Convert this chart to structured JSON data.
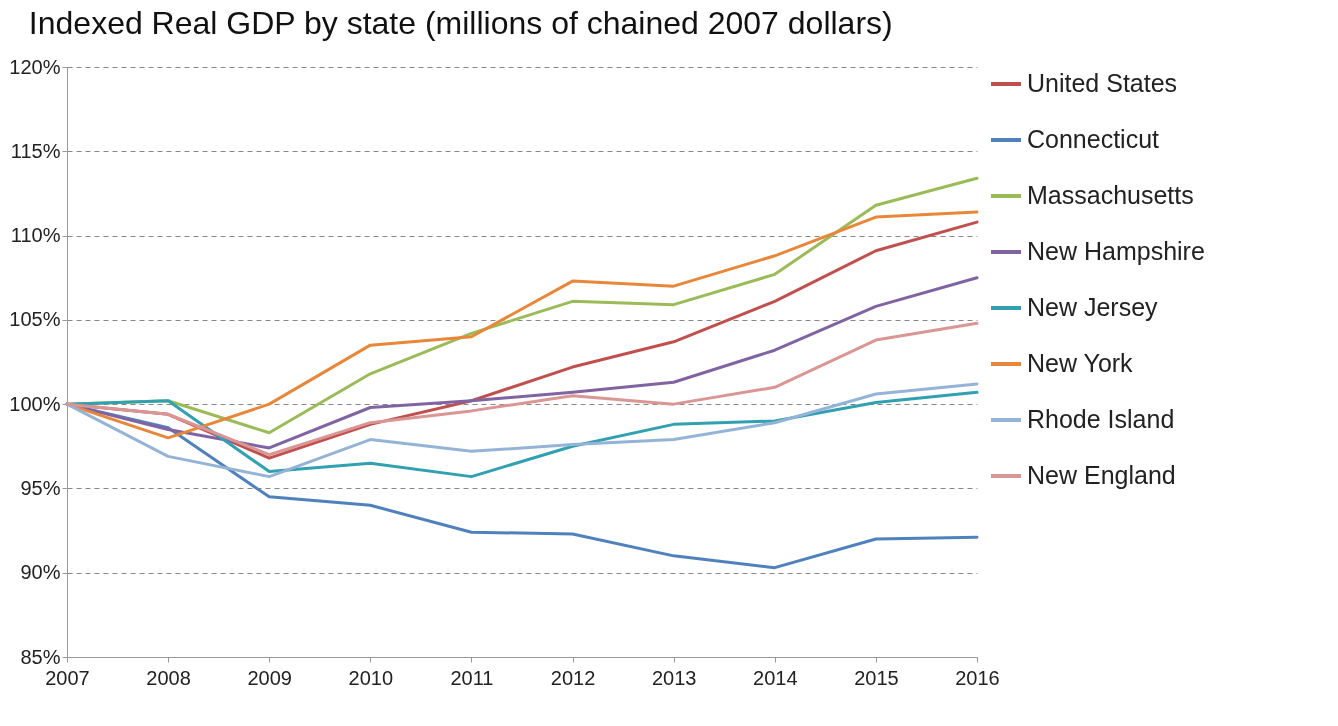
{
  "chart_data": {
    "type": "line",
    "title": "Indexed Real GDP by state (millions of chained 2007 dollars)",
    "categories": [
      "2007",
      "2008",
      "2009",
      "2010",
      "2011",
      "2012",
      "2013",
      "2014",
      "2015",
      "2016"
    ],
    "series": [
      {
        "name": "United States",
        "color": "#c0504d",
        "values": [
          100,
          99.4,
          96.8,
          98.8,
          100.2,
          102.2,
          103.7,
          106.1,
          109.1,
          110.8
        ]
      },
      {
        "name": "Connecticut",
        "color": "#4f81bd",
        "values": [
          100,
          98.6,
          94.5,
          94.0,
          92.4,
          92.3,
          91.0,
          90.3,
          92.0,
          92.1
        ]
      },
      {
        "name": "Massachusetts",
        "color": "#9bbb59",
        "values": [
          100,
          100.2,
          98.3,
          101.8,
          104.2,
          106.1,
          105.9,
          107.7,
          111.8,
          113.4
        ]
      },
      {
        "name": "New Hampshire",
        "color": "#8064a2",
        "values": [
          100,
          98.5,
          97.4,
          99.8,
          100.2,
          100.7,
          101.3,
          103.2,
          105.8,
          107.5
        ]
      },
      {
        "name": "New Jersey",
        "color": "#31a0b0",
        "values": [
          100,
          100.2,
          96.0,
          96.5,
          95.7,
          97.5,
          98.8,
          99.0,
          100.1,
          100.7
        ]
      },
      {
        "name": "New York",
        "color": "#e8873a",
        "values": [
          100,
          98.0,
          100.0,
          103.5,
          104.0,
          107.3,
          107.0,
          108.8,
          111.1,
          111.4
        ]
      },
      {
        "name": "Rhode Island",
        "color": "#95b3d7",
        "values": [
          100,
          96.9,
          95.7,
          97.9,
          97.2,
          97.6,
          97.9,
          98.9,
          100.6,
          101.2
        ]
      },
      {
        "name": "New England",
        "color": "#d99694",
        "values": [
          100,
          99.4,
          97.0,
          98.9,
          99.6,
          100.5,
          100.0,
          101.0,
          103.8,
          104.8
        ]
      }
    ],
    "ylim": [
      85,
      120
    ],
    "yticks": [
      {
        "value": 85,
        "label": "85%"
      },
      {
        "value": 90,
        "label": "90%"
      },
      {
        "value": 95,
        "label": "95%"
      },
      {
        "value": 100,
        "label": "100%"
      },
      {
        "value": 105,
        "label": "105%"
      },
      {
        "value": 110,
        "label": "110%"
      },
      {
        "value": 115,
        "label": "115%"
      },
      {
        "value": 120,
        "label": "120%"
      }
    ],
    "grid": "y",
    "legend": "right"
  }
}
